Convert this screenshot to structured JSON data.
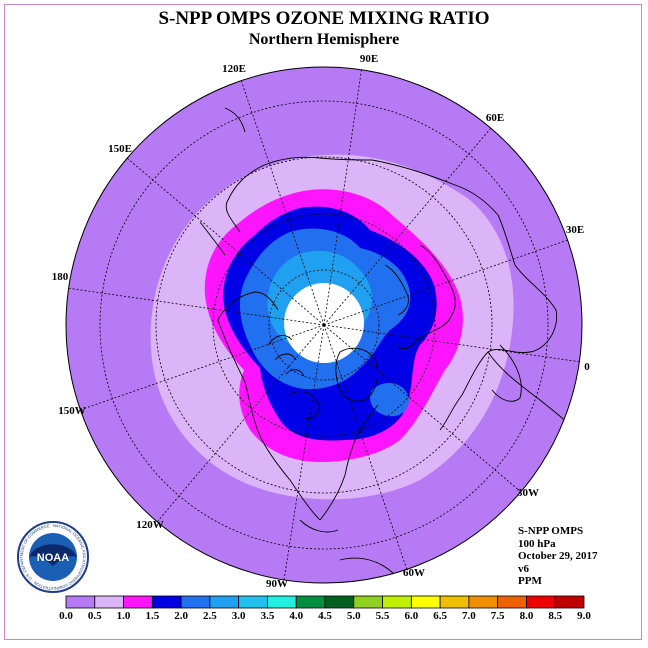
{
  "header": {
    "title": "S-NPP OMPS OZONE MIXING RATIO",
    "subtitle": "Northern Hemisphere"
  },
  "longitude_labels": [
    {
      "id": "lon-90e",
      "text": "90E"
    },
    {
      "id": "lon-60e",
      "text": "60E"
    },
    {
      "id": "lon-30e",
      "text": "30E"
    },
    {
      "id": "lon-0",
      "text": "0"
    },
    {
      "id": "lon-30w",
      "text": "30W"
    },
    {
      "id": "lon-60w",
      "text": "60W"
    },
    {
      "id": "lon-90w",
      "text": "90W"
    },
    {
      "id": "lon-120w",
      "text": "120W"
    },
    {
      "id": "lon-150w",
      "text": "150W"
    },
    {
      "id": "lon-180",
      "text": "180"
    },
    {
      "id": "lon-150e",
      "text": "150E"
    },
    {
      "id": "lon-120e",
      "text": "120E"
    }
  ],
  "info": {
    "instrument": "S-NPP OMPS",
    "level": "100 hPa",
    "date": "October 29, 2017",
    "version": "v6",
    "units": "PPM"
  },
  "logo": {
    "text": "NOAA",
    "ring_text": "NATIONAL OCEANIC AND ATMOSPHERIC ADMINISTRATION · U.S. DEPARTMENT OF COMMERCE"
  },
  "colorbar": {
    "ticks": [
      "0.0",
      "0.5",
      "1.0",
      "1.5",
      "2.0",
      "2.5",
      "3.0",
      "3.5",
      "4.0",
      "4.5",
      "5.0",
      "5.5",
      "6.0",
      "6.5",
      "7.0",
      "7.5",
      "8.0",
      "8.5",
      "9.0"
    ],
    "colors": [
      "#b77af5",
      "#dcb4f8",
      "#ff14ff",
      "#0000e6",
      "#2070f0",
      "#20a0f0",
      "#20c0f0",
      "#20f0e0",
      "#009040",
      "#006020",
      "#90d020",
      "#c0f000",
      "#ffff00",
      "#f0c000",
      "#f09000",
      "#f06000",
      "#f00000",
      "#c00000"
    ]
  },
  "map_colors": {
    "level_0_0": "#b77af5",
    "level_0_5": "#dcb4f8",
    "level_1_0": "#ff14ff",
    "level_1_5": "#0000e6",
    "level_2_0": "#2070f0",
    "level_2_5": "#20a0f0",
    "no_data": "#ffffff"
  }
}
